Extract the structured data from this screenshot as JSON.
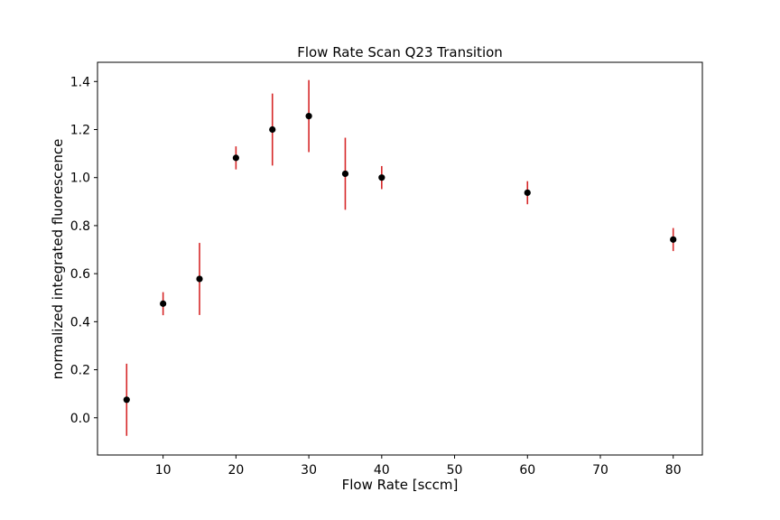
{
  "chart_data": {
    "type": "scatter",
    "title": "Flow Rate Scan Q23 Transition",
    "xlabel": "Flow Rate [sccm]",
    "ylabel": "normalized integrated fluorescence",
    "xlim": [
      1,
      84
    ],
    "ylim": [
      -0.155,
      1.48
    ],
    "xticks": [
      10,
      20,
      30,
      40,
      50,
      60,
      70,
      80
    ],
    "yticks": [
      0.0,
      0.2,
      0.4,
      0.6,
      0.8,
      1.0,
      1.2,
      1.4
    ],
    "xtick_labels": [
      "10",
      "20",
      "30",
      "40",
      "50",
      "60",
      "70",
      "80"
    ],
    "ytick_labels": [
      "0.0",
      "0.2",
      "0.4",
      "0.6",
      "0.8",
      "1.0",
      "1.2",
      "1.4"
    ],
    "grid": false,
    "marker_color": "#000000",
    "errorbar_color": "#d62728",
    "series": [
      {
        "x": [
          5,
          10,
          15,
          20,
          25,
          30,
          35,
          40,
          60,
          80
        ],
        "y": [
          0.075,
          0.475,
          0.578,
          1.082,
          1.2,
          1.256,
          1.016,
          1.0,
          0.937,
          0.742
        ],
        "yerr": [
          0.15,
          0.048,
          0.15,
          0.048,
          0.15,
          0.15,
          0.15,
          0.048,
          0.048,
          0.048
        ]
      }
    ]
  }
}
